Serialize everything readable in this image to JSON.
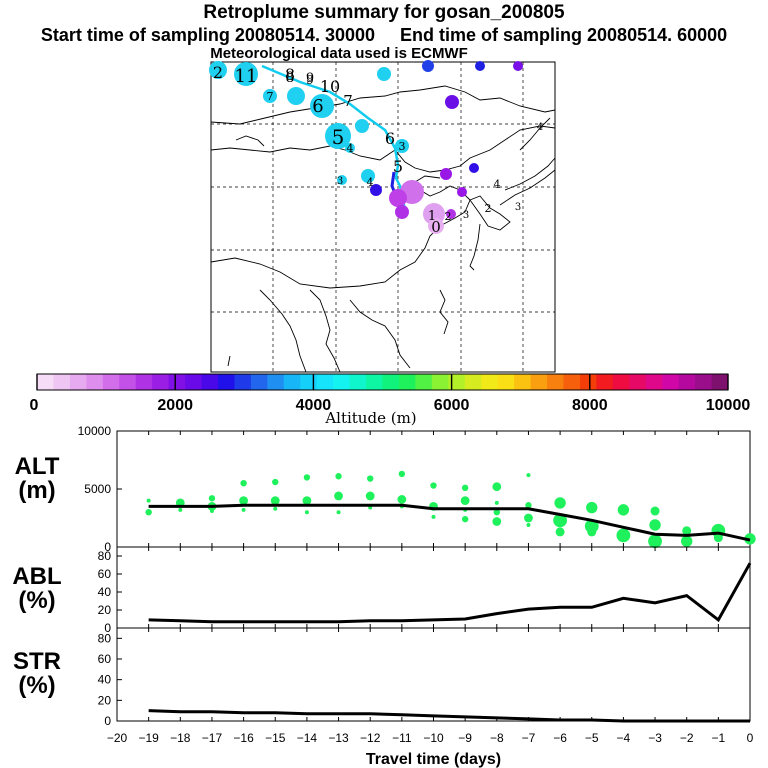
{
  "header": {
    "title": "Retroplume summary for gosan_200805",
    "start_label": "Start time of sampling 20080514. 30000",
    "end_label": "End time of sampling 20080514. 60000",
    "met_label": "Meteorological data used is ECMWF"
  },
  "colorbar": {
    "title": "Altitude (m)",
    "tick_labels": [
      "0",
      "2000",
      "4000",
      "6000",
      "8000",
      "10000"
    ],
    "colors": [
      "#f6dcf7",
      "#efc6f3",
      "#e7aaf0",
      "#de8eed",
      "#d26ee9",
      "#c350e7",
      "#b032e5",
      "#9b1ee4",
      "#8010e6",
      "#6a0ae8",
      "#4a08e8",
      "#2010ea",
      "#1f3ae8",
      "#2166ec",
      "#1f8ff2",
      "#17b6f7",
      "#15d0f8",
      "#16e4fb",
      "#14f3f0",
      "#10f6cc",
      "#0ef6a4",
      "#10f27c",
      "#1ff15c",
      "#52f245",
      "#8af232",
      "#b3f028",
      "#d6ec20",
      "#f1ea18",
      "#fbdf16",
      "#fcc212",
      "#faa010",
      "#f8800e",
      "#f6600c",
      "#f43e0a",
      "#f21c20",
      "#ee0c40",
      "#e60a66",
      "#e0088a",
      "#d006a6",
      "#b4089e",
      "#9a0e8c",
      "#7e106e"
    ]
  },
  "map": {
    "labels": [
      {
        "t": "2",
        "fill": "#00ddee"
      },
      {
        "t": "11",
        "fill": "#00ddee"
      },
      {
        "t": "8",
        "fill": "#00ddee"
      },
      {
        "t": "9",
        "fill": "#00ddee"
      },
      {
        "t": "10",
        "fill": "#00ddee"
      },
      {
        "t": "7",
        "fill": "#00ddee"
      },
      {
        "t": "6",
        "fill": "#00ddee"
      },
      {
        "t": "5",
        "fill": "#00ddee"
      },
      {
        "t": "4",
        "fill": "#00ddee"
      },
      {
        "t": "3",
        "fill": "#00ddee"
      },
      {
        "t": "0",
        "fill": "#e8a8f0"
      },
      {
        "t": "1",
        "fill": "#e8a8f0"
      },
      {
        "t": "2",
        "fill": "#a040e8"
      },
      {
        "t": "3",
        "fill": "#a040e8"
      },
      {
        "t": "4",
        "fill": "#a040e8"
      },
      {
        "t": "2",
        "fill": "#ffffff"
      },
      {
        "t": "3",
        "fill": "#ffffff"
      },
      {
        "t": "4",
        "fill": "#ffffff"
      },
      {
        "t": "8",
        "fill": "#ffffff"
      },
      {
        "t": "9",
        "fill": "#ffffff"
      },
      {
        "t": "7",
        "fill": "#ffffff"
      },
      {
        "t": "6",
        "fill": "#ffffff"
      },
      {
        "t": "5",
        "fill": "#ffffff"
      },
      {
        "t": "4",
        "fill": "#ffffff"
      },
      {
        "t": "3",
        "fill": "#ffffff"
      }
    ]
  },
  "panels": {
    "alt": {
      "label": "ALT\n(m)"
    },
    "abl": {
      "label": "ABL\n(%)"
    },
    "str": {
      "label": "STR\n(%)"
    }
  },
  "chart_data": [
    {
      "type": "line",
      "name": "ALT",
      "ylabel": "ALT (m)",
      "ylim": [
        0,
        10000
      ],
      "ytick_labels": [
        "10000",
        "5000",
        "0"
      ],
      "x": [
        -19,
        -18,
        -17,
        -16,
        -15,
        -14,
        -13,
        -12,
        -11,
        -10,
        -9,
        -8,
        -7,
        -6,
        -5,
        -4,
        -3,
        -2,
        -1,
        0
      ],
      "values": [
        3500,
        3500,
        3500,
        3600,
        3600,
        3600,
        3600,
        3600,
        3600,
        3300,
        3300,
        3300,
        3300,
        2800,
        2300,
        1700,
        1100,
        1000,
        1200,
        600
      ],
      "scatter": [
        {
          "x": -19,
          "y": 4000
        },
        {
          "x": -19,
          "y": 3000
        },
        {
          "x": -18,
          "y": 3800
        },
        {
          "x": -18,
          "y": 3200
        },
        {
          "x": -17,
          "y": 4200
        },
        {
          "x": -17,
          "y": 3500
        },
        {
          "x": -17,
          "y": 3100
        },
        {
          "x": -16,
          "y": 5500
        },
        {
          "x": -16,
          "y": 4000
        },
        {
          "x": -16,
          "y": 3200
        },
        {
          "x": -15,
          "y": 5600
        },
        {
          "x": -15,
          "y": 4000
        },
        {
          "x": -15,
          "y": 3300
        },
        {
          "x": -14,
          "y": 6000
        },
        {
          "x": -14,
          "y": 4000
        },
        {
          "x": -14,
          "y": 3000
        },
        {
          "x": -13,
          "y": 6100
        },
        {
          "x": -13,
          "y": 4400
        },
        {
          "x": -13,
          "y": 3000
        },
        {
          "x": -12,
          "y": 5900
        },
        {
          "x": -12,
          "y": 4400
        },
        {
          "x": -12,
          "y": 3400
        },
        {
          "x": -11,
          "y": 6300
        },
        {
          "x": -11,
          "y": 4100
        },
        {
          "x": -11,
          "y": 3500
        },
        {
          "x": -10,
          "y": 5300
        },
        {
          "x": -10,
          "y": 3500
        },
        {
          "x": -10,
          "y": 2600
        },
        {
          "x": -9,
          "y": 5100
        },
        {
          "x": -9,
          "y": 4000
        },
        {
          "x": -9,
          "y": 3200
        },
        {
          "x": -9,
          "y": 2400
        },
        {
          "x": -8,
          "y": 5200
        },
        {
          "x": -8,
          "y": 3800
        },
        {
          "x": -8,
          "y": 3000
        },
        {
          "x": -8,
          "y": 2200
        },
        {
          "x": -7,
          "y": 6200
        },
        {
          "x": -7,
          "y": 3600
        },
        {
          "x": -7,
          "y": 2500
        },
        {
          "x": -7,
          "y": 1900
        },
        {
          "x": -6,
          "y": 3800
        },
        {
          "x": -6,
          "y": 2300
        },
        {
          "x": -6,
          "y": 1300
        },
        {
          "x": -5,
          "y": 3400
        },
        {
          "x": -5,
          "y": 1800
        },
        {
          "x": -5,
          "y": 1300
        },
        {
          "x": -4,
          "y": 3200
        },
        {
          "x": -4,
          "y": 1000
        },
        {
          "x": -3,
          "y": 3100
        },
        {
          "x": -3,
          "y": 1900
        },
        {
          "x": -3,
          "y": 500
        },
        {
          "x": -2,
          "y": 1400
        },
        {
          "x": -2,
          "y": 500
        },
        {
          "x": -1,
          "y": 1400
        },
        {
          "x": -1,
          "y": 800
        },
        {
          "x": 0,
          "y": 700
        }
      ]
    },
    {
      "type": "line",
      "name": "ABL",
      "ylabel": "ABL (%)",
      "ylim": [
        0,
        90
      ],
      "ytick_labels": [
        "80",
        "60",
        "40",
        "20",
        "0"
      ],
      "x": [
        -19,
        -18,
        -17,
        -16,
        -15,
        -14,
        -13,
        -12,
        -11,
        -10,
        -9,
        -8,
        -7,
        -6,
        -5,
        -4,
        -3,
        -2,
        -1,
        0
      ],
      "values": [
        9,
        8,
        7,
        7,
        7,
        7,
        7,
        8,
        8,
        9,
        10,
        16,
        21,
        23,
        23,
        33,
        28,
        36,
        9,
        72
      ]
    },
    {
      "type": "line",
      "name": "STR",
      "ylabel": "STR (%)",
      "xlabel": "Travel time (days)",
      "ylim": [
        0,
        90
      ],
      "ytick_labels": [
        "80",
        "60",
        "40",
        "20",
        "0"
      ],
      "xtick_labels": [
        "−20",
        "−19",
        "−18",
        "−17",
        "−16",
        "−15",
        "−14",
        "−13",
        "−12",
        "−11",
        "−10",
        "−9",
        "−8",
        "−7",
        "−6",
        "−5",
        "−4",
        "−3",
        "−2",
        "−1",
        "0"
      ],
      "x": [
        -19,
        -18,
        -17,
        -16,
        -15,
        -14,
        -13,
        -12,
        -11,
        -10,
        -9,
        -8,
        -7,
        -6,
        -5,
        -4,
        -3,
        -2,
        -1,
        0
      ],
      "values": [
        10,
        9,
        9,
        8,
        8,
        7,
        7,
        7,
        6,
        5,
        4,
        3,
        2,
        1,
        1,
        0,
        0,
        0,
        0,
        0
      ]
    }
  ]
}
